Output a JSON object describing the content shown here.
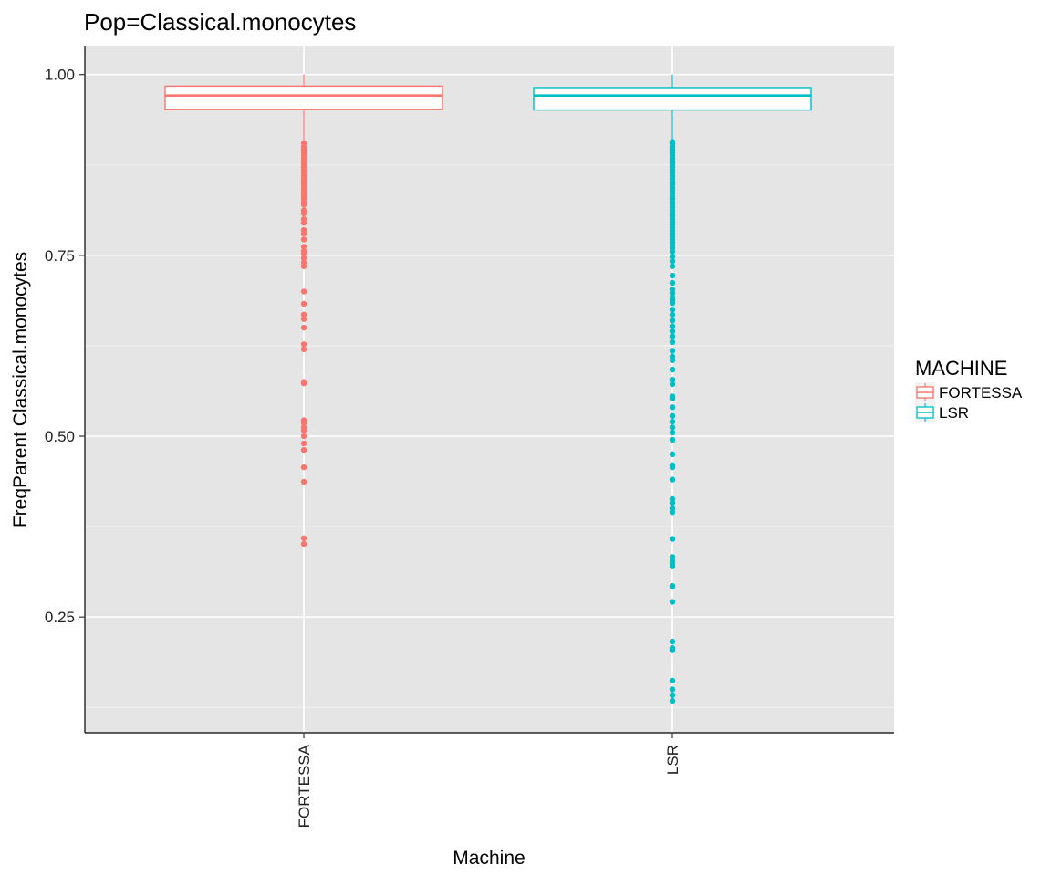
{
  "chart_data": {
    "type": "box",
    "title": "Pop=Classical.monocytes",
    "xlabel": "Machine",
    "ylabel": "FreqParent  Classical.monocytes",
    "ylim": [
      0.09,
      1.04
    ],
    "yticks": [
      0.25,
      0.5,
      0.75,
      1.0
    ],
    "ytick_labels": [
      "0.25",
      "0.50",
      "0.75",
      "1.00"
    ],
    "categories": [
      "FORTESSA",
      "LSR"
    ],
    "grid": true,
    "legend": {
      "title": "MACHINE",
      "position": "right",
      "entries": [
        "FORTESSA",
        "LSR"
      ]
    },
    "series": [
      {
        "name": "FORTESSA",
        "color": "#F8766D",
        "whisker_low": 0.906,
        "q1": 0.952,
        "median": 0.971,
        "q3": 0.984,
        "whisker_high": 1.0,
        "outliers": [
          0.905,
          0.9,
          0.896,
          0.892,
          0.888,
          0.884,
          0.88,
          0.876,
          0.872,
          0.868,
          0.864,
          0.86,
          0.856,
          0.852,
          0.848,
          0.844,
          0.84,
          0.836,
          0.832,
          0.828,
          0.824,
          0.82,
          0.812,
          0.808,
          0.8,
          0.795,
          0.785,
          0.78,
          0.772,
          0.762,
          0.756,
          0.752,
          0.746,
          0.74,
          0.735,
          0.7,
          0.683,
          0.668,
          0.662,
          0.65,
          0.627,
          0.62,
          0.575,
          0.573,
          0.522,
          0.518,
          0.512,
          0.508,
          0.5,
          0.49,
          0.481,
          0.457,
          0.437,
          0.359,
          0.351
        ]
      },
      {
        "name": "LSR",
        "color": "#00BFC4",
        "whisker_low": 0.908,
        "q1": 0.951,
        "median": 0.971,
        "q3": 0.982,
        "whisker_high": 1.0,
        "outliers": [
          0.907,
          0.904,
          0.9,
          0.896,
          0.892,
          0.888,
          0.884,
          0.88,
          0.876,
          0.872,
          0.868,
          0.864,
          0.86,
          0.856,
          0.852,
          0.848,
          0.844,
          0.84,
          0.836,
          0.832,
          0.828,
          0.824,
          0.82,
          0.816,
          0.812,
          0.808,
          0.804,
          0.8,
          0.796,
          0.792,
          0.788,
          0.784,
          0.78,
          0.776,
          0.772,
          0.768,
          0.764,
          0.76,
          0.755,
          0.748,
          0.742,
          0.735,
          0.722,
          0.712,
          0.703,
          0.698,
          0.692,
          0.688,
          0.684,
          0.675,
          0.668,
          0.66,
          0.652,
          0.645,
          0.638,
          0.63,
          0.618,
          0.61,
          0.605,
          0.592,
          0.578,
          0.572,
          0.555,
          0.552,
          0.54,
          0.528,
          0.52,
          0.512,
          0.505,
          0.495,
          0.475,
          0.46,
          0.457,
          0.44,
          0.413,
          0.408,
          0.4,
          0.395,
          0.358,
          0.333,
          0.328,
          0.324,
          0.32,
          0.293,
          0.292,
          0.271,
          0.216,
          0.207,
          0.204,
          0.162,
          0.15,
          0.142,
          0.134
        ]
      }
    ]
  }
}
